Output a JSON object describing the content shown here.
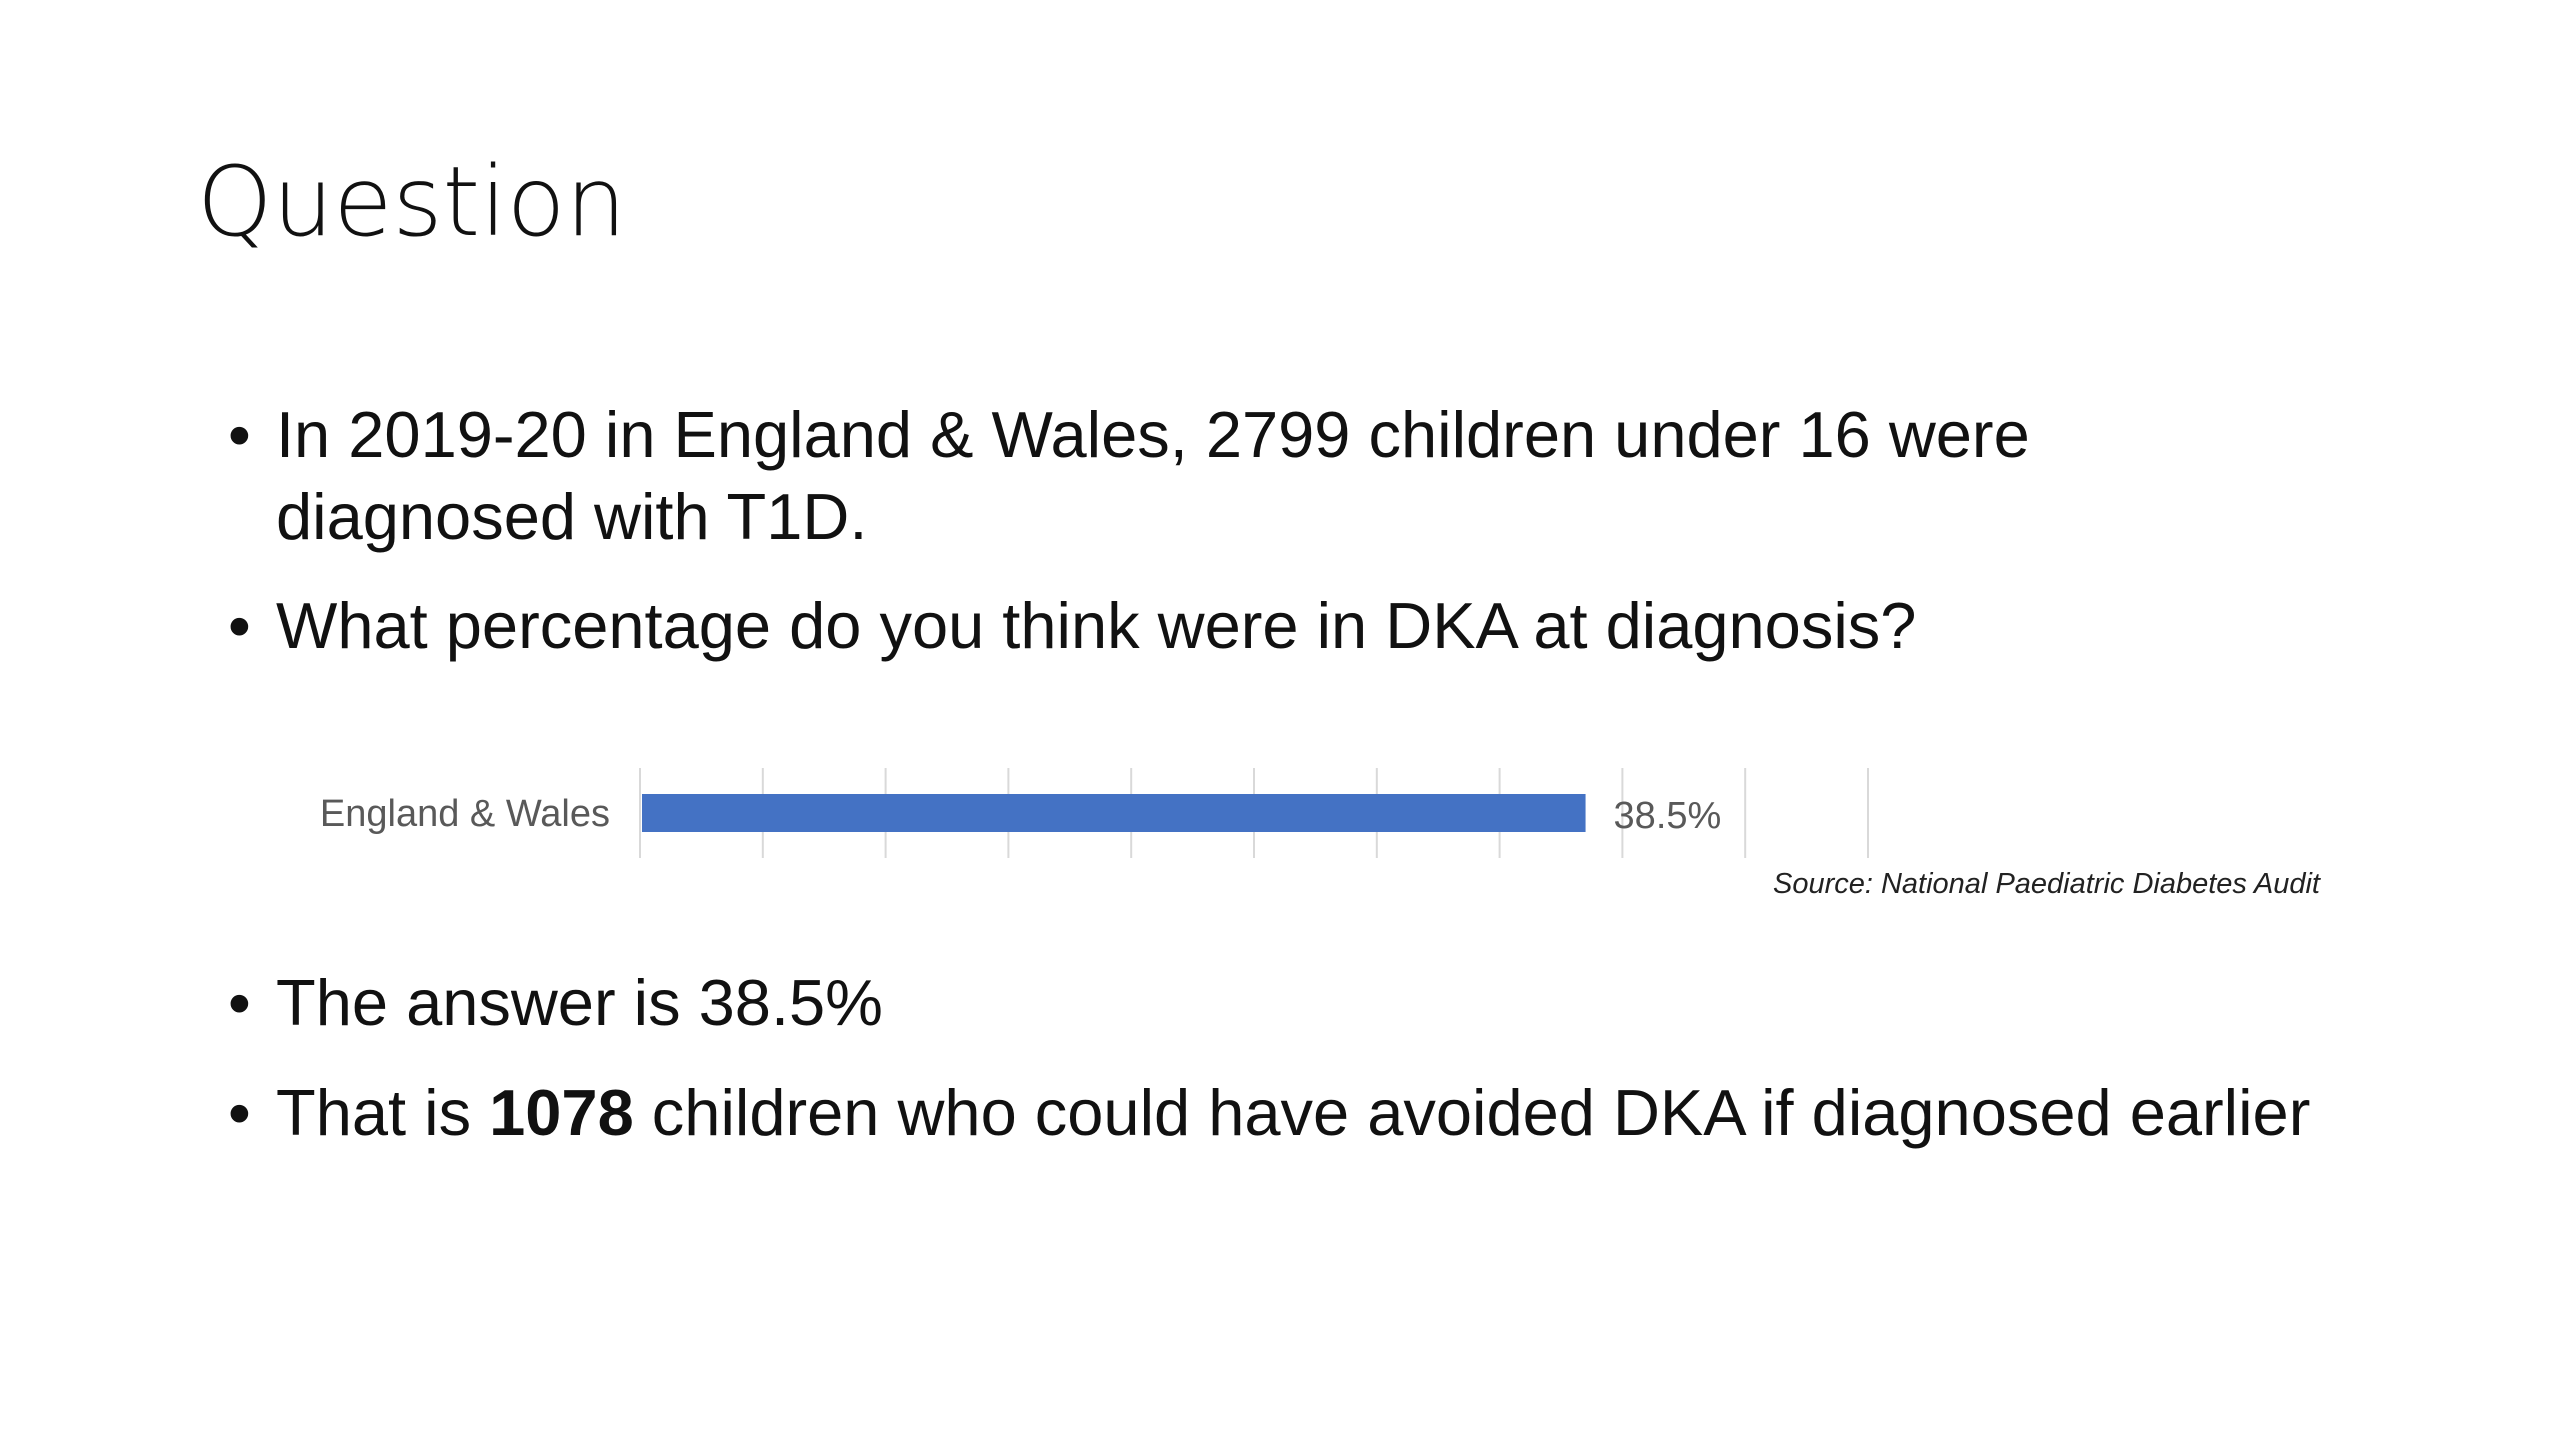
{
  "title": "Question",
  "bullet_symbol": "•",
  "bullets": [
    {
      "text": "In 2019-20 in England & Wales, 2799 children under 16 were diagnosed with T1D."
    },
    {
      "text": "What percentage do you think were in DKA at diagnosis?"
    },
    {
      "text": "The answer is 38.5%"
    },
    {
      "prefix": "That is ",
      "bold": "1078",
      "suffix": " children who could have avoided DKA if diagnosed earlier"
    }
  ],
  "source_note": "Source: National Paediatric Diabetes Audit",
  "colors": {
    "bar": "#4472c4",
    "gridline": "#d9d9d9",
    "category_label": "#595959",
    "value_label": "#595959"
  },
  "chart_data": {
    "type": "bar",
    "orientation": "horizontal",
    "categories": [
      "England & Wales"
    ],
    "values": [
      38.5
    ],
    "value_labels": [
      "38.5%"
    ],
    "xlim": [
      0,
      50
    ],
    "gridline_step": 5,
    "grid": true,
    "title": "",
    "xlabel": "",
    "ylabel": ""
  }
}
